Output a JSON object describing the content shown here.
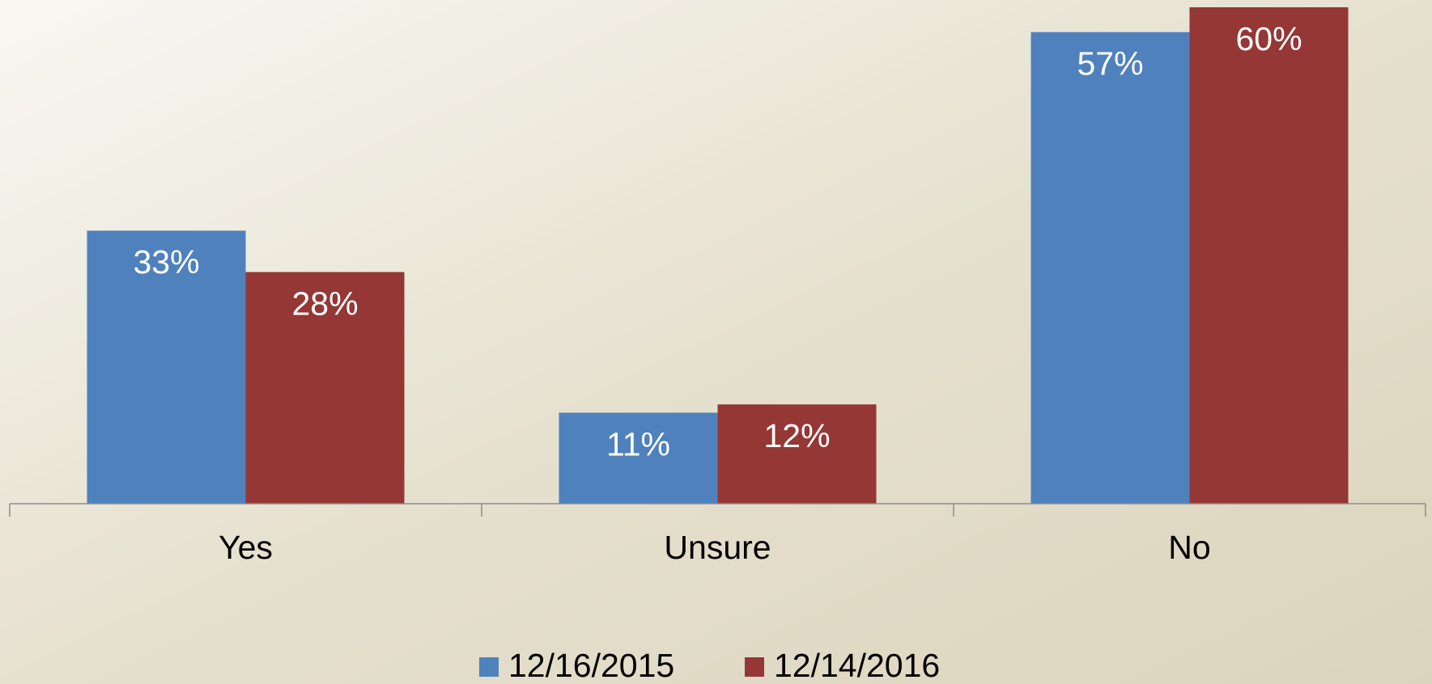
{
  "chart_data": {
    "type": "bar",
    "categories": [
      "Yes",
      "Unsure",
      "No"
    ],
    "series": [
      {
        "name": "12/16/2015",
        "color": "#4f81bd",
        "values": [
          33,
          11,
          57
        ],
        "value_labels": [
          "33%",
          "11%",
          "57%"
        ]
      },
      {
        "name": "12/14/2016",
        "color": "#953735",
        "values": [
          28,
          12,
          60
        ],
        "value_labels": [
          "28%",
          "12%",
          "60%"
        ]
      }
    ],
    "legend": "bottom"
  }
}
